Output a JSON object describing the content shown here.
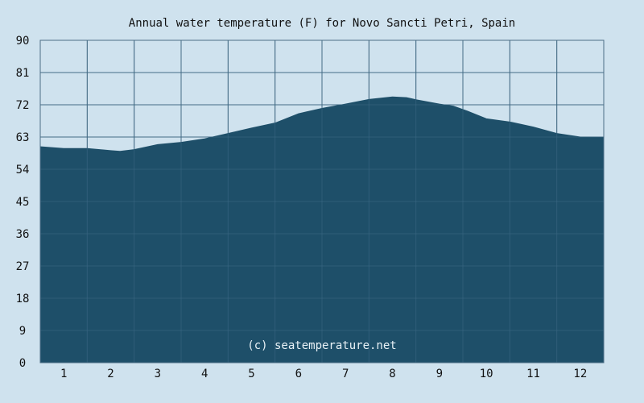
{
  "chart_data": {
    "type": "area",
    "title": "Annual water temperature (F) for Novo Sancti Petri, Spain",
    "xlabel": "",
    "ylabel": "",
    "x_ticks": [
      "1",
      "2",
      "3",
      "4",
      "5",
      "6",
      "7",
      "8",
      "9",
      "10",
      "11",
      "12"
    ],
    "y_ticks": [
      "0",
      "9",
      "18",
      "27",
      "36",
      "45",
      "54",
      "63",
      "72",
      "81",
      "90"
    ],
    "xlim": [
      0.5,
      12.5
    ],
    "ylim": [
      0,
      90
    ],
    "grid": true,
    "watermark": "(c) seatemperature.net",
    "colors": {
      "background": "#cfe2ee",
      "plot_background": "#cfe2ee",
      "fill": "#1e4f69",
      "grid": "#4d6f87"
    },
    "series": [
      {
        "x": [
          0.5,
          1.0,
          1.5,
          2.0,
          2.2,
          2.5,
          3.0,
          3.5,
          4.0,
          4.5,
          5.0,
          5.5,
          6.0,
          6.5,
          7.0,
          7.5,
          8.0,
          8.3,
          8.5,
          9.0,
          9.3,
          9.6,
          10.0,
          10.5,
          11.0,
          11.5,
          12.0,
          12.5
        ],
        "y": [
          60.3,
          59.8,
          59.8,
          59.2,
          59.0,
          59.5,
          60.9,
          61.5,
          62.5,
          64.0,
          65.5,
          66.9,
          69.5,
          71.0,
          72.2,
          73.5,
          74.2,
          74.0,
          73.4,
          72.2,
          71.6,
          70.2,
          68.1,
          67.2,
          65.8,
          64.0,
          63.0,
          62.9
        ]
      }
    ]
  }
}
